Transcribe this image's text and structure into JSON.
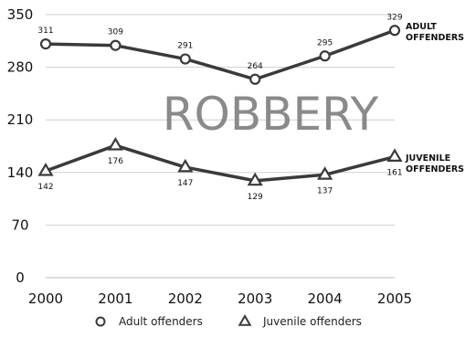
{
  "chart_data": {
    "type": "line",
    "title": "ROBBERY",
    "x": [
      "2000",
      "2001",
      "2002",
      "2003",
      "2004",
      "2005"
    ],
    "ylim": [
      0,
      350
    ],
    "yticks": [
      "0",
      "70",
      "140",
      "210",
      "280",
      "350"
    ],
    "grid": true,
    "legend_position": "bottom",
    "series": [
      {
        "name": "Adult offenders",
        "end_label": [
          "ADULT",
          "OFFENDERS"
        ],
        "marker": "circle",
        "values": [
          311,
          309,
          291,
          264,
          295,
          329
        ],
        "labels": [
          "311",
          "309",
          "291",
          "264",
          "295",
          "329"
        ]
      },
      {
        "name": "Juvenile offenders",
        "end_label": [
          "JUVENILE",
          "OFFENDERS"
        ],
        "marker": "triangle",
        "values": [
          142,
          176,
          147,
          129,
          137,
          161
        ],
        "labels": [
          "142",
          "176",
          "147",
          "129",
          "137",
          "161"
        ]
      }
    ]
  },
  "colors": {
    "line": "#3a3a3a",
    "grid": "#cfcfcf",
    "watermark": "#8a8a8a"
  }
}
